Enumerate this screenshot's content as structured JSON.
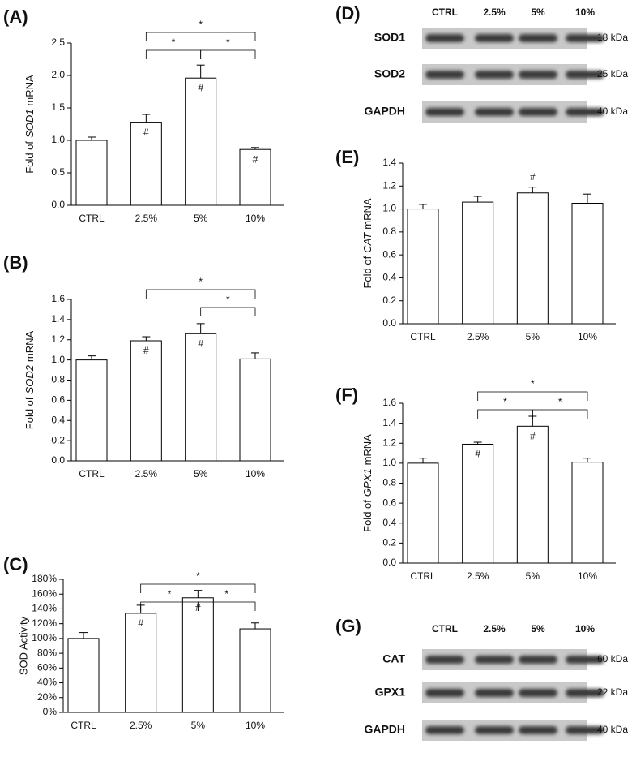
{
  "chart_data": [
    {
      "type": "bar",
      "panel": "(A)",
      "ylabel": [
        "Fold of",
        "SOD1",
        "mRNA"
      ],
      "ylabel_style": [
        "normal",
        "italic",
        "normal"
      ],
      "categories": [
        "CTRL",
        "2.5%",
        "5%",
        "10%"
      ],
      "values": [
        1.0,
        1.28,
        1.96,
        0.86
      ],
      "errors": [
        0.05,
        0.12,
        0.2,
        0.03
      ],
      "color": "#ffffff",
      "annotations": [
        null,
        "#",
        "#",
        "#"
      ],
      "brackets": [
        {
          "from": "2.5%",
          "to": "10%",
          "label": "*"
        },
        {
          "from": "2.5%",
          "to": "5%",
          "label": "*"
        },
        {
          "from": "5%",
          "to": "10%",
          "label": "*"
        }
      ],
      "ylim": [
        0,
        2.5
      ],
      "yticks": [
        {
          "value": 0,
          "label": "0.0"
        },
        {
          "value": 0.5,
          "label": "0.5"
        },
        {
          "value": 1,
          "label": "1.0"
        },
        {
          "value": 1.5,
          "label": "1.5"
        },
        {
          "value": 2,
          "label": "2.0"
        },
        {
          "value": 2.5,
          "label": "2.5"
        }
      ]
    },
    {
      "type": "bar",
      "panel": "(B)",
      "ylabel": [
        "Fold of",
        "SOD2",
        "mRNA"
      ],
      "ylabel_style": [
        "normal",
        "italic",
        "normal"
      ],
      "categories": [
        "CTRL",
        "2.5%",
        "5%",
        "10%"
      ],
      "values": [
        1.0,
        1.19,
        1.26,
        1.01
      ],
      "errors": [
        0.04,
        0.04,
        0.1,
        0.06
      ],
      "color": "#ffffff",
      "annotations": [
        null,
        "#",
        "#",
        null
      ],
      "brackets": [
        {
          "from": "2.5%",
          "to": "10%",
          "label": "*"
        },
        {
          "from": "5%",
          "to": "10%",
          "label": "*"
        }
      ],
      "ylim": [
        0,
        1.6
      ],
      "yticks": [
        {
          "value": 0,
          "label": "0.0"
        },
        {
          "value": 0.2,
          "label": "0.2"
        },
        {
          "value": 0.4,
          "label": "0.4"
        },
        {
          "value": 0.6,
          "label": "0.6"
        },
        {
          "value": 0.8,
          "label": "0.8"
        },
        {
          "value": 1,
          "label": "1.0"
        },
        {
          "value": 1.2,
          "label": "1.2"
        },
        {
          "value": 1.4,
          "label": "1.4"
        },
        {
          "value": 1.6,
          "label": "1.6"
        }
      ]
    },
    {
      "type": "bar",
      "panel": "(C)",
      "ylabel": "SOD Activity",
      "categories": [
        "CTRL",
        "2.5%",
        "5%",
        "10%"
      ],
      "values": [
        100,
        134,
        155,
        113
      ],
      "errors": [
        8,
        11,
        10,
        8
      ],
      "color": "#ffffff",
      "annotations": [
        null,
        "#",
        "#",
        null
      ],
      "brackets": [
        {
          "from": "2.5%",
          "to": "10%",
          "label": "*"
        },
        {
          "from": "2.5%",
          "to": "5%",
          "label": "*"
        },
        {
          "from": "5%",
          "to": "10%",
          "label": "*"
        }
      ],
      "ylim": [
        0,
        180
      ],
      "yticks": [
        {
          "value": 0,
          "label": "0%"
        },
        {
          "value": 20,
          "label": "20%"
        },
        {
          "value": 40,
          "label": "40%"
        },
        {
          "value": 60,
          "label": "60%"
        },
        {
          "value": 80,
          "label": "80%"
        },
        {
          "value": 100,
          "label": "100%"
        },
        {
          "value": 120,
          "label": "120%"
        },
        {
          "value": 140,
          "label": "140%"
        },
        {
          "value": 160,
          "label": "160%"
        },
        {
          "value": 180,
          "label": "180%"
        }
      ]
    },
    {
      "type": "bar",
      "panel": "(E)",
      "ylabel": [
        "Fold of",
        "CAT",
        "mRNA"
      ],
      "ylabel_style": [
        "normal",
        "italic",
        "normal"
      ],
      "categories": [
        "CTRL",
        "2.5%",
        "5%",
        "10%"
      ],
      "values": [
        1.0,
        1.06,
        1.14,
        1.05
      ],
      "errors": [
        0.04,
        0.05,
        0.05,
        0.08
      ],
      "color": "#ffffff",
      "annotations": [
        null,
        null,
        "#",
        null
      ],
      "brackets": [],
      "ylim": [
        0,
        1.4
      ],
      "yticks": [
        {
          "value": 0,
          "label": "0.0"
        },
        {
          "value": 0.2,
          "label": "0.2"
        },
        {
          "value": 0.4,
          "label": "0.4"
        },
        {
          "value": 0.6,
          "label": "0.6"
        },
        {
          "value": 0.8,
          "label": "0.8"
        },
        {
          "value": 1,
          "label": "1.0"
        },
        {
          "value": 1.2,
          "label": "1.2"
        },
        {
          "value": 1.4,
          "label": "1.4"
        }
      ]
    },
    {
      "type": "bar",
      "panel": "(F)",
      "ylabel": [
        "Fold of",
        "GPX1",
        "mRNA"
      ],
      "ylabel_style": [
        "normal",
        "italic",
        "normal"
      ],
      "categories": [
        "CTRL",
        "2.5%",
        "5%",
        "10%"
      ],
      "values": [
        1.0,
        1.19,
        1.37,
        1.01
      ],
      "errors": [
        0.05,
        0.02,
        0.1,
        0.04
      ],
      "color": "#ffffff",
      "annotations": [
        null,
        "#",
        "#",
        null
      ],
      "brackets": [
        {
          "from": "2.5%",
          "to": "10%",
          "label": "*"
        },
        {
          "from": "2.5%",
          "to": "5%",
          "label": "*"
        },
        {
          "from": "5%",
          "to": "10%",
          "label": "*"
        }
      ],
      "ylim": [
        0,
        1.6
      ],
      "yticks": [
        {
          "value": 0,
          "label": "0.0"
        },
        {
          "value": 0.2,
          "label": "0.2"
        },
        {
          "value": 0.4,
          "label": "0.4"
        },
        {
          "value": 0.6,
          "label": "0.6"
        },
        {
          "value": 0.8,
          "label": "0.8"
        },
        {
          "value": 1,
          "label": "1.0"
        },
        {
          "value": 1.2,
          "label": "1.2"
        },
        {
          "value": 1.4,
          "label": "1.4"
        },
        {
          "value": 1.6,
          "label": "1.6"
        }
      ]
    }
  ],
  "blots": [
    {
      "panel": "(D)",
      "lanes": [
        "CTRL",
        "2.5%",
        "5%",
        "10%"
      ],
      "rows": [
        {
          "protein": "SOD1",
          "size": "18 kDa"
        },
        {
          "protein": "SOD2",
          "size": "25 kDa"
        },
        {
          "protein": "GAPDH",
          "size": "40 kDa"
        }
      ]
    },
    {
      "panel": "(G)",
      "lanes": [
        "CTRL",
        "2.5%",
        "5%",
        "10%"
      ],
      "rows": [
        {
          "protein": "CAT",
          "size": "60 kDa"
        },
        {
          "protein": "GPX1",
          "size": "22 kDa"
        },
        {
          "protein": "GAPDH",
          "size": "40 kDa"
        }
      ]
    }
  ]
}
